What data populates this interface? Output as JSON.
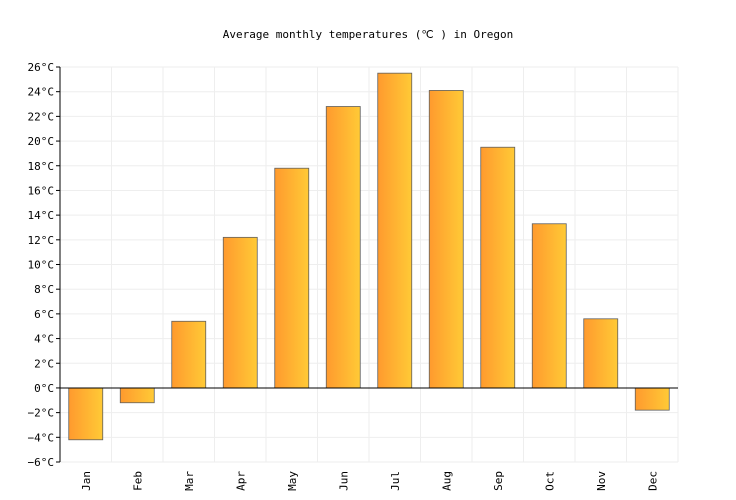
{
  "chart_data": {
    "type": "bar",
    "title": "Average monthly temperatures (℃ ) in Oregon",
    "xlabel": "",
    "ylabel": "",
    "categories": [
      "Jan",
      "Feb",
      "Mar",
      "Apr",
      "May",
      "Jun",
      "Jul",
      "Aug",
      "Sep",
      "Oct",
      "Nov",
      "Dec"
    ],
    "values": [
      -4.2,
      -1.2,
      5.4,
      12.2,
      17.8,
      22.8,
      25.5,
      24.1,
      19.5,
      13.3,
      5.6,
      -1.8
    ],
    "ylim": [
      -6,
      26
    ],
    "yticks": [
      26,
      24,
      22,
      20,
      18,
      16,
      14,
      12,
      10,
      8,
      6,
      4,
      2,
      0,
      -2,
      -4,
      -6
    ],
    "ytick_labels": [
      "26°C",
      "24°C",
      "22°C",
      "20°C",
      "18°C",
      "16°C",
      "14°C",
      "12°C",
      "10°C",
      "8°C",
      "6°C",
      "4°C",
      "2°C",
      "0°C",
      "−2°C",
      "−4°C",
      "−6°C"
    ],
    "grid": true,
    "legend": "none",
    "colors": {
      "bar_start": "#ff9a2e",
      "bar_end": "#ffca36",
      "bar_stroke": "#5f5f5f",
      "grid": "#eeeeee",
      "axis": "#000000"
    }
  }
}
